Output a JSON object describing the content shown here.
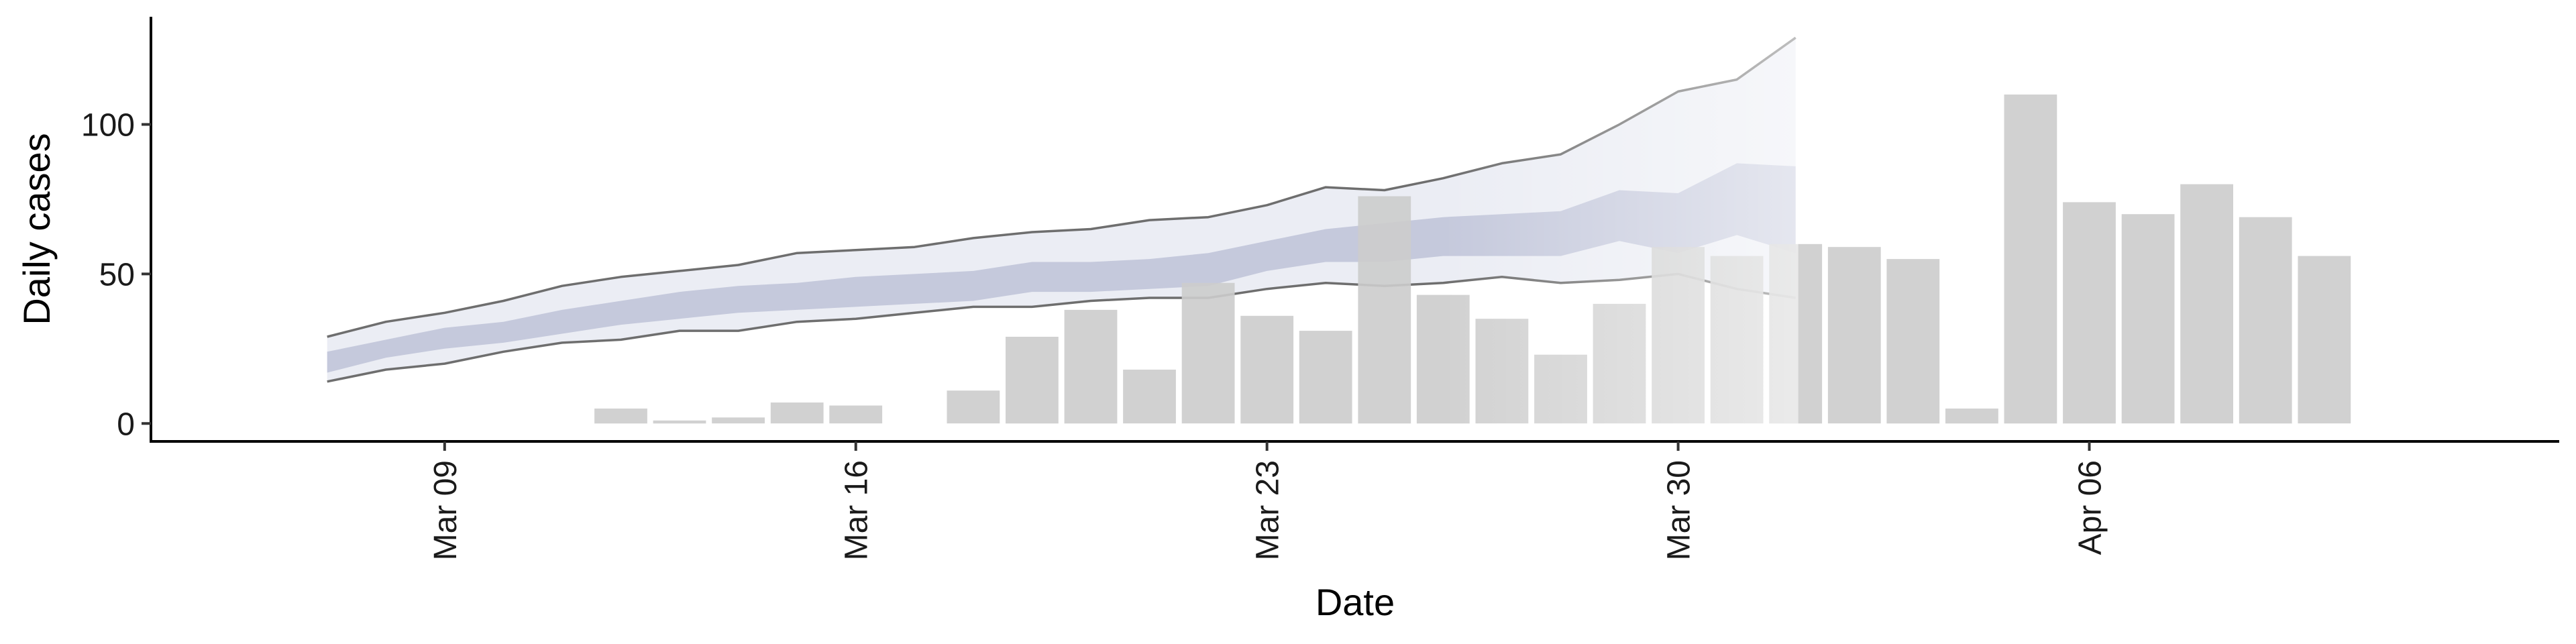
{
  "chart_data": {
    "type": "bar",
    "xlabel": "Date",
    "ylabel": "Daily cases",
    "ylim": [
      -6,
      136
    ],
    "xlim": [
      "2020-03-04",
      "2020-04-14"
    ],
    "grid": false,
    "legend": "none",
    "x_ticks": [
      {
        "date": "2020-03-09",
        "label": "Mar 09"
      },
      {
        "date": "2020-03-16",
        "label": "Mar 16"
      },
      {
        "date": "2020-03-23",
        "label": "Mar 23"
      },
      {
        "date": "2020-03-30",
        "label": "Mar 30"
      },
      {
        "date": "2020-04-06",
        "label": "Apr 06"
      }
    ],
    "y_ticks": [
      {
        "value": 0,
        "label": "0"
      },
      {
        "value": 50,
        "label": "50"
      },
      {
        "value": 100,
        "label": "100"
      }
    ],
    "bars": {
      "color": "#cccccc",
      "dates": [
        "2020-03-12",
        "2020-03-13",
        "2020-03-14",
        "2020-03-15",
        "2020-03-16",
        "2020-03-18",
        "2020-03-19",
        "2020-03-20",
        "2020-03-21",
        "2020-03-22",
        "2020-03-23",
        "2020-03-24",
        "2020-03-25",
        "2020-03-26",
        "2020-03-27",
        "2020-03-28",
        "2020-03-29",
        "2020-03-30",
        "2020-03-31",
        "2020-04-01",
        "2020-04-02",
        "2020-04-03",
        "2020-04-04",
        "2020-04-05",
        "2020-04-06",
        "2020-04-07",
        "2020-04-08",
        "2020-04-09",
        "2020-04-10"
      ],
      "values": [
        5,
        1,
        2,
        7,
        6,
        11,
        29,
        38,
        18,
        47,
        36,
        31,
        76,
        43,
        35,
        23,
        40,
        59,
        56,
        60,
        59,
        55,
        5,
        110,
        74,
        70,
        80,
        69,
        56
      ]
    },
    "forecast": {
      "dates": [
        "2020-03-07",
        "2020-03-08",
        "2020-03-09",
        "2020-03-10",
        "2020-03-11",
        "2020-03-12",
        "2020-03-13",
        "2020-03-14",
        "2020-03-15",
        "2020-03-16",
        "2020-03-17",
        "2020-03-18",
        "2020-03-19",
        "2020-03-20",
        "2020-03-21",
        "2020-03-22",
        "2020-03-23",
        "2020-03-24",
        "2020-03-25",
        "2020-03-26",
        "2020-03-27",
        "2020-03-28",
        "2020-03-29",
        "2020-03-30",
        "2020-03-31",
        "2020-04-01"
      ],
      "outer_upper": [
        29,
        34,
        37,
        41,
        46,
        49,
        51,
        53,
        57,
        58,
        59,
        62,
        64,
        65,
        68,
        69,
        73,
        79,
        78,
        82,
        87,
        90,
        100,
        111,
        115,
        129
      ],
      "outer_lower": [
        14,
        18,
        20,
        24,
        27,
        28,
        31,
        31,
        34,
        35,
        37,
        39,
        39,
        41,
        42,
        42,
        45,
        47,
        46,
        47,
        49,
        47,
        48,
        50,
        45,
        42
      ],
      "inner_upper": [
        24,
        28,
        32,
        34,
        38,
        41,
        44,
        46,
        47,
        49,
        50,
        51,
        54,
        54,
        55,
        57,
        61,
        65,
        67,
        69,
        70,
        71,
        78,
        77,
        87,
        86
      ],
      "inner_lower": [
        17,
        22,
        25,
        27,
        30,
        33,
        35,
        37,
        38,
        39,
        40,
        41,
        44,
        44,
        45,
        46,
        51,
        54,
        54,
        56,
        56,
        56,
        61,
        57,
        63,
        57
      ],
      "inner_color": "#c5c9dc",
      "outer_color": "#ebedf4",
      "line_color": "#6e6e6e",
      "uncertain_from": "2020-03-26"
    }
  }
}
